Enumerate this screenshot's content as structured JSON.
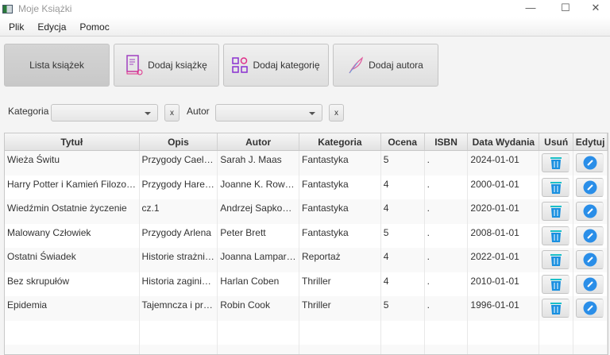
{
  "window": {
    "title": "Moje Książki",
    "minimize": "—",
    "maximize": "☐",
    "close": "✕"
  },
  "menu": [
    "Plik",
    "Edycja",
    "Pomoc"
  ],
  "nav": [
    {
      "label": "Lista książek",
      "icon": "none",
      "active": true
    },
    {
      "label": "Dodaj książkę",
      "icon": "book-icon"
    },
    {
      "label": "Dodaj kategorię",
      "icon": "category-grid-icon"
    },
    {
      "label": "Dodaj autora",
      "icon": "feather-pen-icon"
    }
  ],
  "filters": {
    "category_label": "Kategoria",
    "category_value": "",
    "author_label": "Autor",
    "author_value": "",
    "clear_label": "x"
  },
  "table": {
    "columns": [
      "Tytuł",
      "Opis",
      "Autor",
      "Kategoria",
      "Ocena",
      "ISBN",
      "Data Wydania",
      "Usuń",
      "Edytuj"
    ],
    "rows": [
      [
        "Wieża Świtu",
        "Przygody Caeleny",
        "Sarah J. Maas",
        "Fantastyka",
        "5",
        ".",
        "2024-01-01"
      ],
      [
        "Harry Potter i Kamień Filozoficzny",
        "Przygody Harego ...",
        "Joanne K. Rowling",
        "Fantastyka",
        "4",
        ".",
        "2000-01-01"
      ],
      [
        "Wiedźmin Ostatnie życzenie",
        "cz.1",
        "Andrzej Sapkowski",
        "Fantastyka",
        "4",
        ".",
        "2020-01-01"
      ],
      [
        "Malowany Człowiek",
        "Przygody Arlena",
        "Peter Brett",
        "Fantastyka",
        "5",
        ".",
        "2008-01-01"
      ],
      [
        "Ostatni Świadek",
        "Historie strażnikó...",
        "Joanna Lamparska",
        "Reportaż",
        "4",
        ".",
        "2022-01-01"
      ],
      [
        "Bez skrupułów",
        "Historia zaginięcia...",
        "Harlan Coben",
        "Thriller",
        "4",
        ".",
        "2010-01-01"
      ],
      [
        "Epidemia",
        "Tajemncza i przer...",
        "Robin Cook",
        "Thriller",
        "5",
        ".",
        "1996-01-01"
      ]
    ]
  },
  "colors": {
    "trash": "#1aa3d6",
    "edit": "#2a8ee8",
    "accent": "#b040c8"
  }
}
